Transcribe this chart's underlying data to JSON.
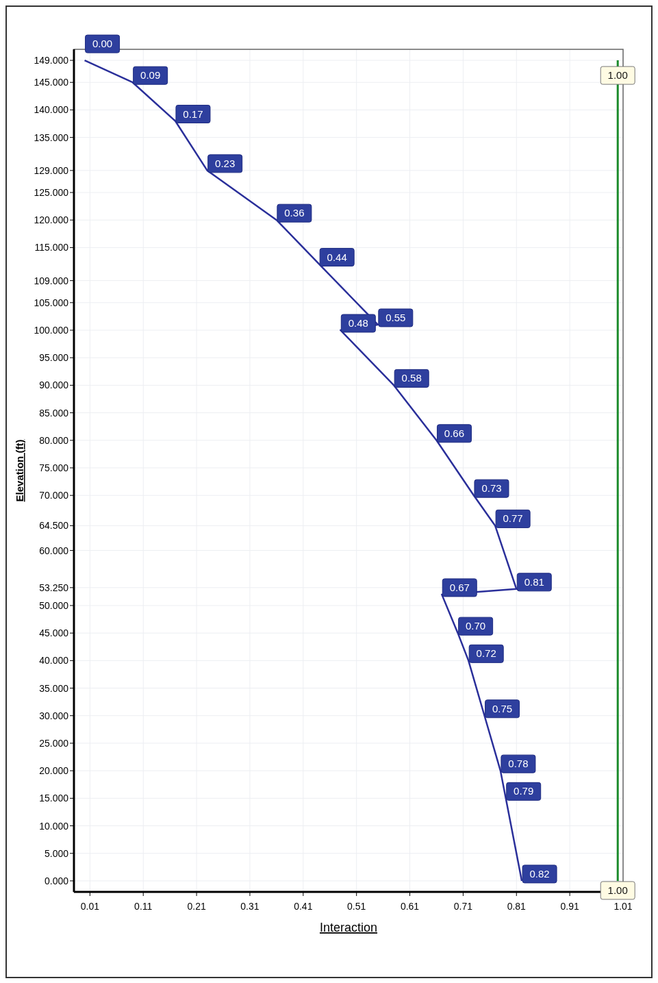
{
  "chart_data": {
    "type": "line",
    "orientation": "horizontal",
    "xlabel": "Interaction",
    "ylabel": "Elevation (ft)",
    "xlim": [
      -0.02,
      1.01
    ],
    "ylim": [
      -2,
      151
    ],
    "xticks": [
      {
        "value": 0.01,
        "label": "0.01"
      },
      {
        "value": 0.11,
        "label": "0.11"
      },
      {
        "value": 0.21,
        "label": "0.21"
      },
      {
        "value": 0.31,
        "label": "0.31"
      },
      {
        "value": 0.41,
        "label": "0.41"
      },
      {
        "value": 0.51,
        "label": "0.51"
      },
      {
        "value": 0.61,
        "label": "0.61"
      },
      {
        "value": 0.71,
        "label": "0.71"
      },
      {
        "value": 0.81,
        "label": "0.81"
      },
      {
        "value": 0.91,
        "label": "0.91"
      },
      {
        "value": 1.01,
        "label": "1.01"
      }
    ],
    "yticks": [
      {
        "value": 149,
        "label": "149.000"
      },
      {
        "value": 145,
        "label": "145.000"
      },
      {
        "value": 140,
        "label": "140.000"
      },
      {
        "value": 135,
        "label": "135.000"
      },
      {
        "value": 129,
        "label": "129.000"
      },
      {
        "value": 125,
        "label": "125.000"
      },
      {
        "value": 120,
        "label": "120.000"
      },
      {
        "value": 115,
        "label": "115.000"
      },
      {
        "value": 109,
        "label": "109.000"
      },
      {
        "value": 105,
        "label": "105.000"
      },
      {
        "value": 100,
        "label": "100.000"
      },
      {
        "value": 95,
        "label": "95.000"
      },
      {
        "value": 90,
        "label": "90.000"
      },
      {
        "value": 85,
        "label": "85.000"
      },
      {
        "value": 80,
        "label": "80.000"
      },
      {
        "value": 75,
        "label": "75.000"
      },
      {
        "value": 70,
        "label": "70.000"
      },
      {
        "value": 64.5,
        "label": "64.500"
      },
      {
        "value": 60,
        "label": "60.000"
      },
      {
        "value": 53.25,
        "label": "53.250"
      },
      {
        "value": 50,
        "label": "50.000"
      },
      {
        "value": 45,
        "label": "45.000"
      },
      {
        "value": 40,
        "label": "40.000"
      },
      {
        "value": 35,
        "label": "35.000"
      },
      {
        "value": 30,
        "label": "30.000"
      },
      {
        "value": 25,
        "label": "25.000"
      },
      {
        "value": 20,
        "label": "20.000"
      },
      {
        "value": 15,
        "label": "15.000"
      },
      {
        "value": 10,
        "label": "10.000"
      },
      {
        "value": 5,
        "label": "5.000"
      },
      {
        "value": 0,
        "label": "0.000"
      }
    ],
    "grid": true,
    "marker": "none",
    "line_style": "solid",
    "series": [
      {
        "color": "#2a2f9a",
        "x": [
          149,
          145,
          138,
          129,
          120,
          112,
          101,
          100,
          90,
          80,
          70,
          64.5,
          53,
          52,
          45,
          40,
          30,
          20,
          15,
          0
        ],
        "values": [
          0.0,
          0.09,
          0.17,
          0.23,
          0.36,
          0.44,
          0.55,
          0.48,
          0.58,
          0.66,
          0.73,
          0.77,
          0.81,
          0.67,
          0.7,
          0.72,
          0.75,
          0.78,
          0.79,
          0.82
        ],
        "value_labels": [
          "0.00",
          "0.09",
          "0.17",
          "0.23",
          "0.36",
          "0.44",
          "0.55",
          "0.48",
          "0.58",
          "0.66",
          "0.73",
          "0.77",
          "0.81",
          "0.67",
          "0.70",
          "0.72",
          "0.75",
          "0.78",
          "0.79",
          "0.82"
        ]
      },
      {
        "color": "#1a8a2a",
        "x": [
          149,
          0
        ],
        "values": [
          1.0,
          1.0
        ],
        "value_labels": [
          "1.00",
          "1.00"
        ]
      }
    ]
  }
}
